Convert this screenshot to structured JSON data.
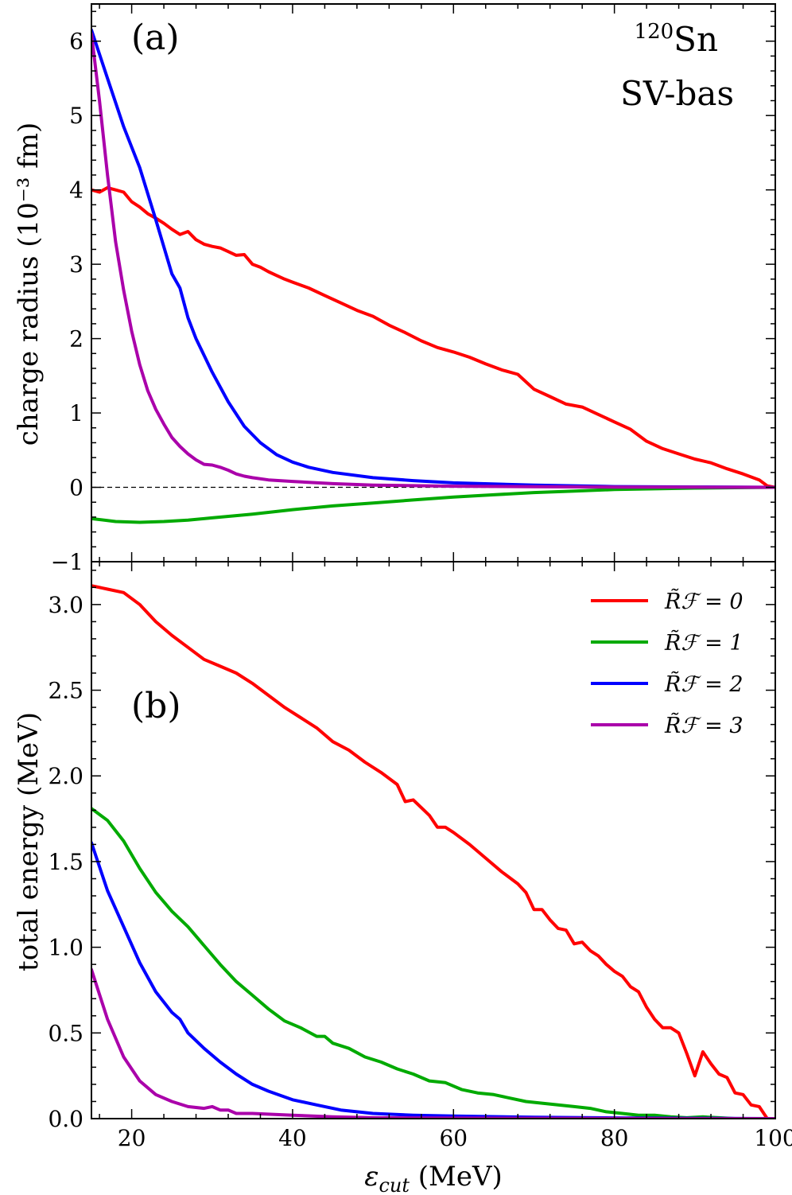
{
  "chart_data": [
    {
      "type": "line",
      "panel_label": "(a)",
      "ylabel": "charge radius (10⁻³ fm)",
      "xlim": [
        15,
        100
      ],
      "ylim": [
        -1,
        6.5
      ],
      "yticks": [
        -1,
        0,
        1,
        2,
        3,
        4,
        5,
        6
      ],
      "ytick_labels": [
        "−1",
        "0",
        "1",
        "2",
        "3",
        "4",
        "5",
        "6"
      ],
      "annotations": {
        "isotope_mass": "120",
        "isotope_symbol": "Sn",
        "functional": "SV-bas"
      },
      "reference_line": {
        "y": 0,
        "style": "dashed"
      },
      "series": [
        {
          "label": "R̃ℱ = 0",
          "color": "#ff0000",
          "x": [
            15,
            16,
            17,
            18,
            19,
            20,
            21,
            22,
            23,
            24,
            25,
            26,
            27,
            28,
            29,
            30,
            31,
            32,
            33,
            34,
            35,
            36,
            37,
            38,
            39,
            40,
            42,
            44,
            46,
            48,
            50,
            52,
            54,
            56,
            58,
            60,
            62,
            64,
            66,
            68,
            70,
            72,
            74,
            76,
            78,
            80,
            82,
            84,
            86,
            88,
            90,
            92,
            94,
            96,
            98,
            99,
            100
          ],
          "y": [
            4.0,
            3.97,
            4.03,
            4.0,
            3.97,
            3.84,
            3.77,
            3.68,
            3.62,
            3.55,
            3.47,
            3.4,
            3.44,
            3.33,
            3.27,
            3.24,
            3.22,
            3.17,
            3.12,
            3.13,
            3.0,
            2.96,
            2.9,
            2.85,
            2.8,
            2.76,
            2.68,
            2.58,
            2.48,
            2.38,
            2.3,
            2.18,
            2.08,
            1.97,
            1.88,
            1.82,
            1.75,
            1.66,
            1.58,
            1.52,
            1.32,
            1.22,
            1.12,
            1.08,
            0.98,
            0.88,
            0.78,
            0.62,
            0.52,
            0.45,
            0.38,
            0.33,
            0.25,
            0.18,
            0.1,
            0.02,
            0.0
          ]
        },
        {
          "label": "R̃ℱ = 1",
          "color": "#00aa00",
          "x": [
            15,
            18,
            21,
            24,
            27,
            30,
            35,
            40,
            45,
            50,
            55,
            60,
            65,
            70,
            75,
            80,
            85,
            90,
            95,
            100
          ],
          "y": [
            -0.42,
            -0.46,
            -0.47,
            -0.46,
            -0.44,
            -0.41,
            -0.36,
            -0.3,
            -0.25,
            -0.21,
            -0.17,
            -0.13,
            -0.1,
            -0.07,
            -0.05,
            -0.03,
            -0.02,
            -0.01,
            -0.005,
            0.0
          ]
        },
        {
          "label": "R̃ℱ = 2",
          "color": "#0000ff",
          "x": [
            15,
            17,
            19,
            21,
            23,
            25,
            26,
            27,
            28,
            30,
            32,
            34,
            36,
            38,
            40,
            42,
            45,
            50,
            55,
            60,
            70,
            80,
            90,
            100
          ],
          "y": [
            6.15,
            5.5,
            4.85,
            4.3,
            3.6,
            2.87,
            2.68,
            2.28,
            2.0,
            1.55,
            1.15,
            0.82,
            0.6,
            0.44,
            0.34,
            0.27,
            0.2,
            0.13,
            0.09,
            0.06,
            0.03,
            0.01,
            0.005,
            0.0
          ]
        },
        {
          "label": "R̃ℱ = 3",
          "color": "#aa00aa",
          "x": [
            15,
            16,
            17,
            18,
            19,
            20,
            21,
            22,
            23,
            24,
            25,
            26,
            27,
            28,
            29,
            30,
            31,
            32,
            33,
            34,
            35,
            37,
            40,
            45,
            50,
            60,
            70,
            80,
            90,
            100
          ],
          "y": [
            6.1,
            5.2,
            4.2,
            3.3,
            2.65,
            2.1,
            1.65,
            1.3,
            1.05,
            0.85,
            0.67,
            0.55,
            0.45,
            0.37,
            0.31,
            0.3,
            0.27,
            0.23,
            0.18,
            0.15,
            0.13,
            0.1,
            0.08,
            0.05,
            0.03,
            0.015,
            0.008,
            0.004,
            0.002,
            0.0
          ]
        }
      ]
    },
    {
      "type": "line",
      "panel_label": "(b)",
      "xlabel_symbol": "ε",
      "xlabel_subscript": "cut",
      "xlabel_unit": " (MeV)",
      "ylabel": "total energy (MeV)",
      "xlim": [
        15,
        100
      ],
      "ylim": [
        0,
        3.25
      ],
      "xticks": [
        20,
        40,
        60,
        80,
        100
      ],
      "xtick_labels": [
        "20",
        "40",
        "60",
        "80",
        "100"
      ],
      "yticks": [
        0.0,
        0.5,
        1.0,
        1.5,
        2.0,
        2.5,
        3.0
      ],
      "ytick_labels": [
        "0.0",
        "0.5",
        "1.0",
        "1.5",
        "2.0",
        "2.5",
        "3.0"
      ],
      "legend": {
        "position": "top-right"
      },
      "series": [
        {
          "label": "R̃ℱ = 0",
          "color": "#ff0000",
          "x": [
            15,
            17,
            19,
            21,
            23,
            25,
            27,
            29,
            31,
            33,
            35,
            37,
            39,
            41,
            43,
            45,
            47,
            49,
            51,
            53,
            54,
            55,
            57,
            58,
            59,
            60,
            62,
            64,
            66,
            68,
            69,
            70,
            71,
            72,
            73,
            74,
            75,
            76,
            77,
            78,
            79,
            80,
            81,
            82,
            83,
            84,
            85,
            86,
            87,
            88,
            89,
            90,
            91,
            92,
            93,
            94,
            95,
            96,
            97,
            98,
            99,
            100
          ],
          "y": [
            3.11,
            3.09,
            3.07,
            3.0,
            2.9,
            2.82,
            2.75,
            2.68,
            2.64,
            2.6,
            2.54,
            2.47,
            2.4,
            2.34,
            2.28,
            2.2,
            2.15,
            2.08,
            2.02,
            1.95,
            1.85,
            1.86,
            1.77,
            1.7,
            1.7,
            1.67,
            1.6,
            1.52,
            1.44,
            1.37,
            1.32,
            1.22,
            1.22,
            1.16,
            1.11,
            1.1,
            1.02,
            1.03,
            0.98,
            0.95,
            0.9,
            0.86,
            0.83,
            0.77,
            0.74,
            0.65,
            0.58,
            0.53,
            0.53,
            0.5,
            0.38,
            0.25,
            0.39,
            0.32,
            0.26,
            0.24,
            0.15,
            0.14,
            0.08,
            0.07,
            0.0,
            0.0
          ]
        },
        {
          "label": "R̃ℱ = 1",
          "color": "#00aa00",
          "x": [
            15,
            17,
            19,
            21,
            23,
            25,
            27,
            29,
            31,
            33,
            35,
            37,
            39,
            41,
            43,
            44,
            45,
            47,
            49,
            51,
            53,
            55,
            57,
            59,
            61,
            63,
            65,
            67,
            69,
            71,
            73,
            75,
            77,
            79,
            81,
            83,
            85,
            87,
            89,
            91,
            93,
            95,
            97,
            100
          ],
          "y": [
            1.81,
            1.74,
            1.62,
            1.46,
            1.32,
            1.21,
            1.12,
            1.01,
            0.9,
            0.8,
            0.72,
            0.64,
            0.57,
            0.53,
            0.48,
            0.48,
            0.44,
            0.41,
            0.36,
            0.33,
            0.29,
            0.26,
            0.22,
            0.21,
            0.17,
            0.15,
            0.14,
            0.12,
            0.1,
            0.09,
            0.08,
            0.07,
            0.06,
            0.04,
            0.03,
            0.02,
            0.02,
            0.01,
            0.005,
            0.01,
            0.005,
            0.0,
            0.0,
            0.0
          ]
        },
        {
          "label": "R̃ℱ = 2",
          "color": "#0000ff",
          "x": [
            15,
            17,
            19,
            21,
            23,
            25,
            26,
            27,
            29,
            31,
            33,
            35,
            37,
            40,
            43,
            46,
            50,
            55,
            60,
            70,
            80,
            90,
            100
          ],
          "y": [
            1.61,
            1.33,
            1.12,
            0.91,
            0.74,
            0.62,
            0.58,
            0.5,
            0.41,
            0.33,
            0.26,
            0.2,
            0.16,
            0.11,
            0.08,
            0.05,
            0.03,
            0.02,
            0.015,
            0.008,
            0.004,
            0.002,
            0.0
          ]
        },
        {
          "label": "R̃ℱ = 3",
          "color": "#aa00aa",
          "x": [
            15,
            17,
            19,
            21,
            23,
            25,
            27,
            29,
            30,
            31,
            32,
            33,
            35,
            40,
            45,
            50,
            60,
            70,
            80,
            90,
            100
          ],
          "y": [
            0.87,
            0.58,
            0.36,
            0.22,
            0.14,
            0.1,
            0.07,
            0.06,
            0.07,
            0.05,
            0.05,
            0.03,
            0.03,
            0.02,
            0.01,
            0.005,
            0.003,
            0.002,
            0.001,
            0.0,
            0.0
          ]
        }
      ]
    }
  ]
}
